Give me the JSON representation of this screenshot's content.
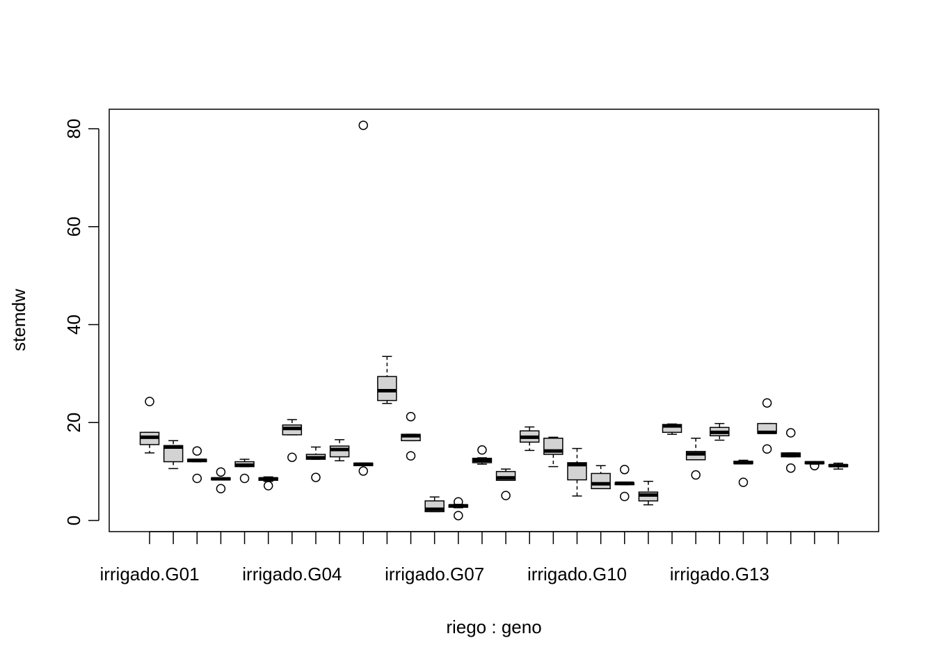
{
  "chart_data": {
    "type": "boxplot",
    "xlabel": "riego : geno",
    "ylabel": "stemdw",
    "ylim": [
      -2,
      82
    ],
    "yticks": [
      0,
      20,
      40,
      60,
      80
    ],
    "x_tick_labels": [
      {
        "index": 1,
        "label": "irrigado.G01"
      },
      {
        "index": 7,
        "label": "irrigado.G04"
      },
      {
        "index": 13,
        "label": "irrigado.G07"
      },
      {
        "index": 19,
        "label": "irrigado.G10"
      },
      {
        "index": 25,
        "label": "irrigado.G13"
      }
    ],
    "box_fill": "#d3d3d3",
    "grid": false,
    "boxes": [
      {
        "q1": 15.5,
        "median": 17.0,
        "q3": 18.0,
        "lw": 13.8,
        "uw": 18.0,
        "outliers": [
          24.3
        ]
      },
      {
        "q1": 12.0,
        "median": 15.0,
        "q3": 15.3,
        "lw": 10.6,
        "uw": 16.3,
        "outliers": []
      },
      {
        "q1": 12.0,
        "median": 12.3,
        "q3": 12.5,
        "lw": 12.0,
        "uw": 12.5,
        "outliers": [
          14.2,
          8.6
        ]
      },
      {
        "q1": 8.3,
        "median": 8.5,
        "q3": 8.7,
        "lw": 8.3,
        "uw": 8.7,
        "outliers": [
          9.9,
          6.5
        ]
      },
      {
        "q1": 11.0,
        "median": 11.3,
        "q3": 12.0,
        "lw": 11.0,
        "uw": 12.5,
        "outliers": [
          8.6
        ]
      },
      {
        "q1": 8.2,
        "median": 8.5,
        "q3": 8.7,
        "lw": 8.0,
        "uw": 8.9,
        "outliers": [
          7.1
        ]
      },
      {
        "q1": 17.5,
        "median": 18.8,
        "q3": 19.5,
        "lw": 17.5,
        "uw": 20.6,
        "outliers": [
          12.9
        ]
      },
      {
        "q1": 12.5,
        "median": 12.8,
        "q3": 13.5,
        "lw": 12.5,
        "uw": 15.0,
        "outliers": [
          8.8
        ]
      },
      {
        "q1": 13.0,
        "median": 14.5,
        "q3": 15.2,
        "lw": 12.2,
        "uw": 16.5,
        "outliers": []
      },
      {
        "q1": 11.2,
        "median": 11.5,
        "q3": 11.7,
        "lw": 11.2,
        "uw": 11.7,
        "outliers": [
          80.7,
          10.1
        ]
      },
      {
        "q1": 24.5,
        "median": 26.5,
        "q3": 29.4,
        "lw": 23.9,
        "uw": 33.5,
        "outliers": []
      },
      {
        "q1": 16.3,
        "median": 17.3,
        "q3": 17.6,
        "lw": 16.3,
        "uw": 17.6,
        "outliers": [
          21.2,
          13.2
        ]
      },
      {
        "q1": 1.8,
        "median": 2.3,
        "q3": 4.0,
        "lw": 1.8,
        "uw": 4.8,
        "outliers": []
      },
      {
        "q1": 2.7,
        "median": 3.0,
        "q3": 3.2,
        "lw": 2.6,
        "uw": 3.3,
        "outliers": [
          3.8,
          1.0
        ]
      },
      {
        "q1": 11.8,
        "median": 12.3,
        "q3": 12.7,
        "lw": 11.5,
        "uw": 12.8,
        "outliers": [
          14.4
        ]
      },
      {
        "q1": 8.2,
        "median": 8.7,
        "q3": 10.0,
        "lw": 8.2,
        "uw": 10.5,
        "outliers": [
          5.1
        ]
      },
      {
        "q1": 16.0,
        "median": 17.0,
        "q3": 18.3,
        "lw": 14.3,
        "uw": 19.1,
        "outliers": []
      },
      {
        "q1": 13.5,
        "median": 14.2,
        "q3": 16.8,
        "lw": 11.0,
        "uw": 17.0,
        "outliers": []
      },
      {
        "q1": 8.3,
        "median": 11.4,
        "q3": 11.8,
        "lw": 5.0,
        "uw": 14.7,
        "outliers": []
      },
      {
        "q1": 6.5,
        "median": 7.5,
        "q3": 9.6,
        "lw": 6.5,
        "uw": 11.2,
        "outliers": []
      },
      {
        "q1": 7.3,
        "median": 7.6,
        "q3": 7.7,
        "lw": 7.3,
        "uw": 7.7,
        "outliers": [
          10.4,
          4.9
        ]
      },
      {
        "q1": 4.0,
        "median": 5.2,
        "q3": 5.8,
        "lw": 3.2,
        "uw": 8.0,
        "outliers": []
      },
      {
        "q1": 18.0,
        "median": 19.3,
        "q3": 19.6,
        "lw": 17.6,
        "uw": 19.7,
        "outliers": []
      },
      {
        "q1": 12.4,
        "median": 13.6,
        "q3": 14.1,
        "lw": 12.4,
        "uw": 16.8,
        "outliers": [
          9.3
        ]
      },
      {
        "q1": 17.3,
        "median": 18.0,
        "q3": 19.0,
        "lw": 16.4,
        "uw": 19.8,
        "outliers": []
      },
      {
        "q1": 11.6,
        "median": 11.8,
        "q3": 12.1,
        "lw": 11.6,
        "uw": 12.3,
        "outliers": [
          7.8
        ]
      },
      {
        "q1": 17.8,
        "median": 18.0,
        "q3": 19.8,
        "lw": 17.8,
        "uw": 19.8,
        "outliers": [
          24.0,
          14.6
        ]
      },
      {
        "q1": 13.0,
        "median": 13.4,
        "q3": 13.8,
        "lw": 13.0,
        "uw": 13.8,
        "outliers": [
          17.9,
          10.7
        ]
      },
      {
        "q1": 11.6,
        "median": 11.8,
        "q3": 12.0,
        "lw": 11.5,
        "uw": 12.0,
        "outliers": [
          11.2
        ]
      },
      {
        "q1": 11.0,
        "median": 11.2,
        "q3": 11.4,
        "lw": 10.5,
        "uw": 11.7,
        "outliers": []
      }
    ]
  }
}
